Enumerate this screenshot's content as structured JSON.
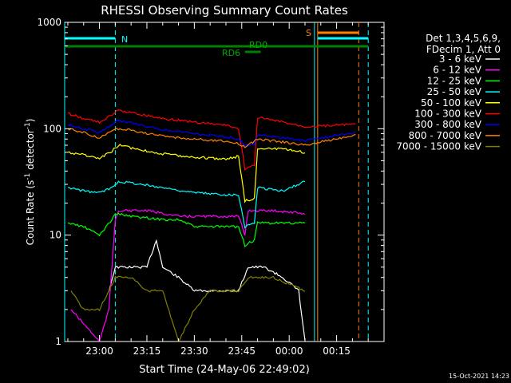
{
  "chart_data": {
    "type": "line",
    "title": "RHESSI Observing Summary Count Rates",
    "xlabel": "Start Time (24-May-06 22:49:02)",
    "ylabel_main": "Count Rate (s",
    "ylabel_sup1": "-1",
    "ylabel_mid": " detector",
    "ylabel_sup2": "-1",
    "ylabel_end": ")",
    "y_scale": "log",
    "ylim": [
      1,
      1000
    ],
    "y_ticks": [
      {
        "value": 1,
        "label": "1"
      },
      {
        "value": 10,
        "label": "10"
      },
      {
        "value": 100,
        "label": "100"
      },
      {
        "value": 1000,
        "label": "1000"
      }
    ],
    "xlim": [
      "22:49",
      "00:30"
    ],
    "x_ticks": [
      {
        "time": "23:00",
        "label": "23:00"
      },
      {
        "time": "23:15",
        "label": "23:15"
      },
      {
        "time": "23:30",
        "label": "23:30"
      },
      {
        "time": "23:45",
        "label": "23:45"
      },
      {
        "time": "00:00",
        "label": "00:00"
      },
      {
        "time": "00:15",
        "label": "00:15"
      }
    ],
    "legend_placement": "right",
    "legend_header": [
      "Det 1,3,4,5,6,9,",
      "FDecim 1, Att 0"
    ],
    "series": [
      {
        "name": "3 - 6 keV",
        "color": "#ffffff",
        "values": [
          [
            "23:03",
            3
          ],
          [
            "23:05",
            5
          ],
          [
            "23:10",
            5
          ],
          [
            "23:15",
            5
          ],
          [
            "23:18",
            9
          ],
          [
            "23:20",
            5
          ],
          [
            "23:25",
            4
          ],
          [
            "23:30",
            3
          ],
          [
            "23:35",
            3
          ],
          [
            "23:40",
            3
          ],
          [
            "23:44",
            3
          ],
          [
            "23:47",
            5
          ],
          [
            "23:52",
            5
          ],
          [
            "23:58",
            4
          ],
          [
            "00:03",
            3
          ],
          [
            "00:05",
            1
          ]
        ]
      },
      {
        "name": "6 - 12 keV",
        "color": "#ff00ff",
        "values": [
          [
            "22:51",
            2
          ],
          [
            "23:00",
            1
          ],
          [
            "23:03",
            2
          ],
          [
            "23:05",
            14
          ],
          [
            "23:06",
            17
          ],
          [
            "23:15",
            17
          ],
          [
            "23:20",
            16
          ],
          [
            "23:25",
            15
          ],
          [
            "23:35",
            15
          ],
          [
            "23:44",
            15
          ],
          [
            "23:46",
            10
          ],
          [
            "23:47",
            17
          ],
          [
            "23:55",
            17
          ],
          [
            "00:05",
            16
          ]
        ]
      },
      {
        "name": "12 - 25 keV",
        "color": "#00ff00",
        "values": [
          [
            "22:50",
            13
          ],
          [
            "22:55",
            12
          ],
          [
            "23:00",
            10
          ],
          [
            "23:04",
            14
          ],
          [
            "23:05",
            16
          ],
          [
            "23:10",
            15
          ],
          [
            "23:20",
            14
          ],
          [
            "23:25",
            14
          ],
          [
            "23:30",
            12
          ],
          [
            "23:35",
            12
          ],
          [
            "23:44",
            12
          ],
          [
            "23:46",
            8
          ],
          [
            "23:49",
            9
          ],
          [
            "23:50",
            13
          ],
          [
            "23:58",
            13
          ],
          [
            "00:05",
            13
          ]
        ]
      },
      {
        "name": "25 - 50 keV",
        "color": "#00ffff",
        "values": [
          [
            "22:50",
            28
          ],
          [
            "22:55",
            26
          ],
          [
            "23:00",
            25
          ],
          [
            "23:04",
            28
          ],
          [
            "23:06",
            32
          ],
          [
            "23:10",
            31
          ],
          [
            "23:20",
            28
          ],
          [
            "23:30",
            25
          ],
          [
            "23:40",
            24
          ],
          [
            "23:44",
            24
          ],
          [
            "23:46",
            12
          ],
          [
            "23:49",
            13
          ],
          [
            "23:50",
            28
          ],
          [
            "23:58",
            26
          ],
          [
            "00:05",
            32
          ]
        ]
      },
      {
        "name": "50 - 100 keV",
        "color": "#ffff00",
        "values": [
          [
            "22:50",
            60
          ],
          [
            "22:55",
            57
          ],
          [
            "23:00",
            52
          ],
          [
            "23:04",
            62
          ],
          [
            "23:06",
            70
          ],
          [
            "23:10",
            66
          ],
          [
            "23:20",
            58
          ],
          [
            "23:30",
            54
          ],
          [
            "23:40",
            52
          ],
          [
            "23:44",
            55
          ],
          [
            "23:46",
            21
          ],
          [
            "23:49",
            22
          ],
          [
            "23:50",
            66
          ],
          [
            "23:58",
            64
          ],
          [
            "00:05",
            60
          ]
        ]
      },
      {
        "name": "100 - 300 keV",
        "color": "#ff0000",
        "values": [
          [
            "22:50",
            140
          ],
          [
            "22:55",
            125
          ],
          [
            "23:00",
            115
          ],
          [
            "23:04",
            135
          ],
          [
            "23:06",
            148
          ],
          [
            "23:10",
            142
          ],
          [
            "23:20",
            125
          ],
          [
            "23:30",
            115
          ],
          [
            "23:40",
            108
          ],
          [
            "23:44",
            100
          ],
          [
            "23:46",
            42
          ],
          [
            "23:49",
            45
          ],
          [
            "23:50",
            128
          ],
          [
            "23:58",
            115
          ],
          [
            "00:05",
            105
          ],
          [
            "00:21",
            110
          ]
        ]
      },
      {
        "name": "300 - 800 keV",
        "color": "#0000ff",
        "values": [
          [
            "22:50",
            110
          ],
          [
            "22:55",
            100
          ],
          [
            "23:00",
            92
          ],
          [
            "23:04",
            110
          ],
          [
            "23:06",
            120
          ],
          [
            "23:10",
            113
          ],
          [
            "23:20",
            98
          ],
          [
            "23:30",
            90
          ],
          [
            "23:40",
            84
          ],
          [
            "23:44",
            80
          ],
          [
            "23:46",
            70
          ],
          [
            "23:49",
            72
          ],
          [
            "23:50",
            88
          ],
          [
            "23:58",
            82
          ],
          [
            "00:05",
            78
          ],
          [
            "00:21",
            92
          ]
        ]
      },
      {
        "name": "800 - 7000 keV",
        "color": "#ff8000",
        "values": [
          [
            "22:50",
            100
          ],
          [
            "22:55",
            92
          ],
          [
            "23:00",
            82
          ],
          [
            "23:04",
            95
          ],
          [
            "23:06",
            100
          ],
          [
            "23:10",
            97
          ],
          [
            "23:20",
            85
          ],
          [
            "23:30",
            80
          ],
          [
            "23:40",
            76
          ],
          [
            "23:44",
            72
          ],
          [
            "23:46",
            68
          ],
          [
            "23:49",
            76
          ],
          [
            "23:50",
            80
          ],
          [
            "23:58",
            75
          ],
          [
            "00:05",
            70
          ],
          [
            "00:21",
            88
          ]
        ]
      },
      {
        "name": "7000 - 15000 keV",
        "color": "#808000",
        "values": [
          [
            "22:51",
            3
          ],
          [
            "22:55",
            2
          ],
          [
            "23:00",
            2
          ],
          [
            "23:03",
            3
          ],
          [
            "23:05",
            4
          ],
          [
            "23:10",
            4
          ],
          [
            "23:15",
            3
          ],
          [
            "23:20",
            3
          ],
          [
            "23:25",
            1
          ],
          [
            "23:30",
            2
          ],
          [
            "23:35",
            3
          ],
          [
            "23:44",
            3
          ],
          [
            "23:47",
            4
          ],
          [
            "23:55",
            4
          ],
          [
            "00:05",
            3
          ]
        ]
      }
    ],
    "annotations": [
      {
        "text": "N",
        "color": "#00ffff"
      },
      {
        "text": "RD0",
        "color": "#00aa00"
      },
      {
        "text": "RD6",
        "color": "#00aa00"
      },
      {
        "text": "S",
        "color": "#ff8000"
      }
    ],
    "attitude_bars": [
      {
        "name": "N",
        "color": "#00ffff",
        "ranges": [
          [
            "22:49",
            "23:05"
          ],
          [
            "00:09",
            "00:25"
          ]
        ]
      },
      {
        "name": "RD0",
        "color": "#008000",
        "ranges": [
          [
            "22:49",
            "00:25"
          ]
        ]
      },
      {
        "name": "RD6",
        "color": "#008000",
        "ranges": [
          [
            "23:46",
            "23:51"
          ]
        ]
      },
      {
        "name": "S",
        "color": "#ff8000",
        "ranges": [
          [
            "00:09",
            "00:22"
          ]
        ]
      }
    ],
    "event_lines": [
      {
        "time": "22:49",
        "color": "#00ffff",
        "style": "solid"
      },
      {
        "time": "23:05",
        "color": "#00ffff",
        "style": "dashed"
      },
      {
        "time": "00:08",
        "color": "#00ffff",
        "style": "solid"
      },
      {
        "time": "00:09",
        "color": "#ff8000",
        "style": "solid"
      },
      {
        "time": "00:22",
        "color": "#ff8000",
        "style": "dashed"
      },
      {
        "time": "00:25",
        "color": "#00ffff",
        "style": "dashed"
      }
    ],
    "timestamp": "15-Oct-2021 14:23"
  }
}
